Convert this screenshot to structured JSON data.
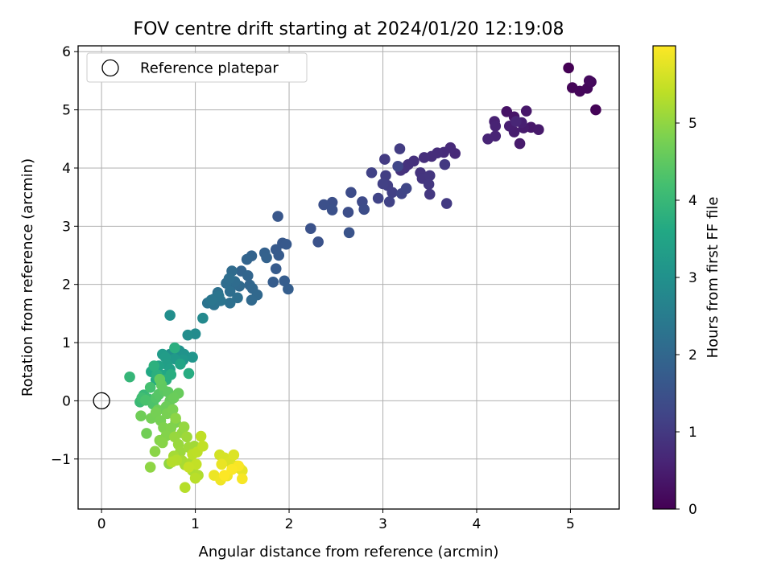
{
  "chart_data": {
    "type": "scatter",
    "title": "FOV centre drift starting at 2024/01/20 12:19:08",
    "xlabel": "Angular distance from reference (arcmin)",
    "ylabel": "Rotation from reference (arcmin)",
    "xlim": [
      -0.25,
      5.52
    ],
    "ylim": [
      -1.86,
      6.1
    ],
    "xticks": [
      0,
      1,
      2,
      3,
      4,
      5
    ],
    "yticks": [
      -1,
      0,
      1,
      2,
      3,
      4,
      5,
      6
    ],
    "xtick_labels": [
      "0",
      "1",
      "2",
      "3",
      "4",
      "5"
    ],
    "ytick_labels": [
      "−1",
      "0",
      "1",
      "2",
      "3",
      "4",
      "5",
      "6"
    ],
    "grid": true,
    "legend": {
      "location": "upper-left",
      "entries": [
        "Reference platepar"
      ]
    },
    "reference_point": {
      "x": 0,
      "y": 0,
      "label": "Reference platepar"
    },
    "colorbar": {
      "label": "Hours from first FF file",
      "range": [
        0,
        6.0
      ],
      "ticks": [
        0,
        1,
        2,
        3,
        4,
        5
      ],
      "tick_labels": [
        "0",
        "1",
        "2",
        "3",
        "4",
        "5"
      ],
      "colormap": "viridis"
    },
    "points": [
      [
        4.98,
        5.72,
        0.0
      ],
      [
        5.27,
        5.0,
        0.05
      ],
      [
        5.02,
        5.38,
        0.08
      ],
      [
        5.1,
        5.32,
        0.1
      ],
      [
        5.18,
        5.37,
        0.12
      ],
      [
        5.22,
        5.48,
        0.14
      ],
      [
        5.2,
        5.5,
        0.16
      ],
      [
        4.32,
        4.97,
        0.3
      ],
      [
        4.4,
        4.88,
        0.35
      ],
      [
        4.53,
        4.98,
        0.38
      ],
      [
        4.58,
        4.7,
        0.4
      ],
      [
        4.66,
        4.66,
        0.42
      ],
      [
        4.46,
        4.42,
        0.44
      ],
      [
        4.5,
        4.69,
        0.46
      ],
      [
        4.4,
        4.62,
        0.48
      ],
      [
        4.35,
        4.72,
        0.5
      ],
      [
        4.48,
        4.78,
        0.52
      ],
      [
        4.19,
        4.8,
        0.55
      ],
      [
        4.2,
        4.72,
        0.58
      ],
      [
        4.2,
        4.55,
        0.6
      ],
      [
        4.12,
        4.5,
        0.62
      ],
      [
        4.42,
        4.8,
        0.64
      ],
      [
        3.77,
        4.25,
        0.7
      ],
      [
        3.72,
        4.35,
        0.72
      ],
      [
        3.65,
        4.27,
        0.74
      ],
      [
        3.58,
        4.26,
        0.76
      ],
      [
        3.52,
        4.2,
        0.78
      ],
      [
        3.44,
        4.18,
        0.8
      ],
      [
        3.33,
        4.12,
        0.82
      ],
      [
        3.27,
        4.06,
        0.84
      ],
      [
        3.23,
        4.0,
        0.86
      ],
      [
        3.19,
        3.96,
        0.88
      ],
      [
        3.4,
        3.92,
        0.9
      ],
      [
        3.42,
        3.82,
        0.92
      ],
      [
        3.5,
        3.87,
        0.94
      ],
      [
        3.49,
        3.72,
        0.96
      ],
      [
        3.5,
        3.55,
        0.98
      ],
      [
        3.66,
        4.06,
        1.0
      ],
      [
        3.68,
        3.39,
        1.02
      ],
      [
        3.02,
        4.15,
        1.04
      ],
      [
        3.18,
        4.33,
        1.06
      ],
      [
        3.03,
        3.87,
        1.08
      ],
      [
        3.05,
        3.7,
        1.1
      ],
      [
        3.1,
        3.58,
        1.12
      ],
      [
        3.0,
        3.73,
        1.14
      ],
      [
        2.88,
        3.92,
        1.16
      ],
      [
        3.07,
        3.42,
        1.18
      ],
      [
        2.95,
        3.48,
        1.2
      ],
      [
        3.2,
        3.56,
        1.22
      ],
      [
        3.25,
        3.65,
        1.24
      ],
      [
        3.16,
        4.03,
        1.26
      ],
      [
        2.78,
        3.42,
        1.35
      ],
      [
        2.66,
        3.58,
        1.38
      ],
      [
        2.8,
        3.29,
        1.4
      ],
      [
        2.63,
        3.24,
        1.42
      ],
      [
        2.46,
        3.41,
        1.44
      ],
      [
        2.37,
        3.37,
        1.46
      ],
      [
        2.46,
        3.28,
        1.48
      ],
      [
        2.23,
        2.96,
        1.5
      ],
      [
        2.31,
        2.73,
        1.52
      ],
      [
        2.64,
        2.89,
        1.54
      ],
      [
        1.88,
        3.17,
        1.62
      ],
      [
        1.93,
        2.71,
        1.64
      ],
      [
        1.97,
        2.69,
        1.66
      ],
      [
        1.86,
        2.6,
        1.68
      ],
      [
        1.89,
        2.5,
        1.7
      ],
      [
        1.86,
        2.27,
        1.72
      ],
      [
        1.83,
        2.04,
        1.74
      ],
      [
        1.95,
        2.06,
        1.76
      ],
      [
        1.99,
        1.92,
        1.78
      ],
      [
        1.74,
        2.54,
        1.85
      ],
      [
        1.76,
        2.46,
        1.87
      ],
      [
        1.6,
        2.49,
        1.89
      ],
      [
        1.55,
        2.43,
        1.91
      ],
      [
        1.49,
        2.23,
        1.93
      ],
      [
        1.56,
        2.15,
        1.95
      ],
      [
        1.58,
        1.99,
        1.97
      ],
      [
        1.61,
        1.93,
        1.99
      ],
      [
        1.66,
        1.82,
        2.01
      ],
      [
        1.6,
        1.73,
        2.03
      ],
      [
        1.47,
        1.97,
        2.05
      ],
      [
        1.43,
        2.0,
        2.07
      ],
      [
        1.39,
        2.23,
        2.09
      ],
      [
        1.42,
        2.05,
        2.11
      ],
      [
        1.33,
        2.02,
        2.13
      ],
      [
        1.36,
        2.1,
        2.15
      ],
      [
        1.37,
        1.88,
        2.17
      ],
      [
        1.45,
        1.77,
        2.19
      ],
      [
        1.37,
        1.68,
        2.21
      ],
      [
        1.24,
        1.86,
        2.23
      ],
      [
        1.2,
        1.75,
        2.25
      ],
      [
        1.13,
        1.68,
        2.27
      ],
      [
        1.2,
        1.65,
        2.29
      ],
      [
        1.27,
        1.72,
        2.31
      ],
      [
        1.25,
        1.8,
        2.33
      ],
      [
        1.17,
        1.73,
        2.35
      ],
      [
        1.08,
        1.42,
        2.8
      ],
      [
        1.0,
        1.15,
        2.85
      ],
      [
        0.92,
        1.13,
        2.9
      ],
      [
        0.73,
        1.47,
        2.92
      ],
      [
        0.73,
        0.8,
        2.95
      ],
      [
        0.83,
        0.86,
        3.0
      ],
      [
        0.88,
        0.8,
        3.05
      ],
      [
        0.97,
        0.75,
        3.1
      ],
      [
        0.87,
        0.7,
        3.15
      ],
      [
        0.78,
        0.72,
        3.2
      ],
      [
        0.65,
        0.8,
        3.25
      ],
      [
        0.68,
        0.75,
        3.3
      ],
      [
        0.7,
        0.62,
        3.35
      ],
      [
        0.73,
        0.54,
        3.4
      ],
      [
        0.61,
        0.6,
        3.45
      ],
      [
        0.84,
        0.63,
        3.5
      ],
      [
        0.66,
        0.44,
        3.55
      ],
      [
        0.53,
        0.5,
        3.6
      ],
      [
        0.58,
        0.36,
        3.65
      ],
      [
        0.93,
        0.47,
        3.7
      ],
      [
        0.74,
        0.45,
        3.72
      ],
      [
        0.69,
        0.36,
        3.74
      ],
      [
        0.78,
        0.91,
        3.76
      ],
      [
        0.59,
        0.45,
        3.78
      ],
      [
        0.56,
        0.6,
        3.8
      ],
      [
        0.3,
        0.41,
        3.95
      ],
      [
        0.45,
        0.1,
        4.0
      ],
      [
        0.41,
        -0.02,
        4.05
      ],
      [
        0.5,
        0.03,
        4.1
      ],
      [
        0.43,
        0.05,
        4.15
      ],
      [
        0.52,
        0.23,
        4.2
      ],
      [
        0.47,
        0.01,
        4.25
      ],
      [
        0.55,
        -0.06,
        4.3
      ],
      [
        0.58,
        0.05,
        4.35
      ],
      [
        0.61,
        0.11,
        4.4
      ],
      [
        0.67,
        0.17,
        4.45
      ],
      [
        0.71,
        0.15,
        4.5
      ],
      [
        0.64,
        0.27,
        4.52
      ],
      [
        0.62,
        0.37,
        4.55
      ],
      [
        0.73,
        0.0,
        4.58
      ],
      [
        0.82,
        0.13,
        4.6
      ],
      [
        0.77,
        0.05,
        4.62
      ],
      [
        0.69,
        -0.1,
        4.64
      ],
      [
        0.6,
        -0.16,
        4.66
      ],
      [
        0.42,
        -0.26,
        4.68
      ],
      [
        0.48,
        -0.56,
        4.7
      ],
      [
        0.53,
        -0.3,
        4.72
      ],
      [
        0.58,
        -0.2,
        4.74
      ],
      [
        0.63,
        -0.34,
        4.76
      ],
      [
        0.7,
        -0.22,
        4.78
      ],
      [
        0.76,
        -0.15,
        4.8
      ],
      [
        0.79,
        -0.37,
        4.82
      ],
      [
        0.66,
        -0.46,
        4.84
      ],
      [
        0.74,
        -0.47,
        4.86
      ],
      [
        0.69,
        -0.6,
        4.88
      ],
      [
        0.62,
        -0.68,
        4.9
      ],
      [
        0.65,
        -0.72,
        4.92
      ],
      [
        0.57,
        -0.87,
        4.94
      ],
      [
        0.79,
        -0.3,
        4.96
      ],
      [
        0.52,
        -1.14,
        4.98
      ],
      [
        0.72,
        -1.08,
        5.0
      ],
      [
        0.86,
        -0.55,
        5.02
      ],
      [
        0.88,
        -0.45,
        5.04
      ],
      [
        0.78,
        -0.62,
        5.06
      ],
      [
        0.82,
        -0.75,
        5.08
      ],
      [
        0.84,
        -0.88,
        5.1
      ],
      [
        0.91,
        -0.62,
        5.12
      ],
      [
        0.93,
        -0.8,
        5.14
      ],
      [
        0.99,
        -0.78,
        5.16
      ],
      [
        0.77,
        -0.95,
        5.18
      ],
      [
        0.86,
        -1.03,
        5.2
      ],
      [
        0.89,
        -1.1,
        5.22
      ],
      [
        0.95,
        -1.07,
        5.24
      ],
      [
        0.97,
        -1.2,
        5.26
      ],
      [
        1.03,
        -1.28,
        5.28
      ],
      [
        0.8,
        -1.02,
        5.3
      ],
      [
        0.75,
        -1.05,
        5.32
      ],
      [
        0.89,
        -1.49,
        5.34
      ],
      [
        1.0,
        -1.33,
        5.36
      ],
      [
        0.97,
        -0.92,
        5.38
      ],
      [
        1.02,
        -0.88,
        5.4
      ],
      [
        1.06,
        -0.61,
        5.42
      ],
      [
        1.08,
        -0.78,
        5.44
      ],
      [
        1.01,
        -1.09,
        5.46
      ],
      [
        0.93,
        -1.14,
        5.48
      ],
      [
        1.26,
        -0.93,
        5.6
      ],
      [
        1.31,
        -0.98,
        5.63
      ],
      [
        1.37,
        -1.05,
        5.66
      ],
      [
        1.41,
        -0.93,
        5.69
      ],
      [
        1.44,
        -1.12,
        5.72
      ],
      [
        1.48,
        -1.17,
        5.75
      ],
      [
        1.5,
        -1.2,
        5.78
      ],
      [
        1.28,
        -1.09,
        5.81
      ],
      [
        1.2,
        -1.28,
        5.84
      ],
      [
        1.27,
        -1.36,
        5.87
      ],
      [
        1.34,
        -1.29,
        5.9
      ],
      [
        1.5,
        -1.34,
        5.93
      ],
      [
        1.46,
        -1.12,
        5.96
      ],
      [
        1.39,
        -1.18,
        5.98
      ],
      [
        1.31,
        -1.28,
        5.99
      ]
    ]
  }
}
